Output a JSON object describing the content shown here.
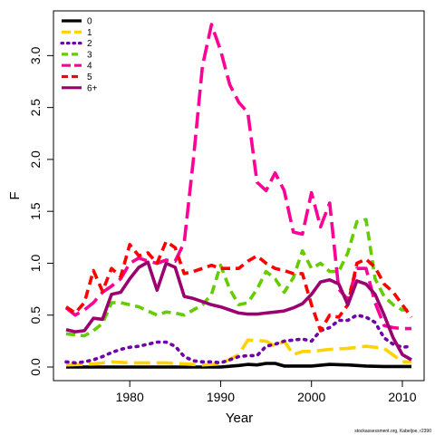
{
  "chart_data": {
    "type": "line",
    "title": "",
    "xlabel": "Year",
    "ylabel": "F",
    "xlim": [
      1973,
      2011
    ],
    "ylim": [
      0,
      3.3
    ],
    "xticks": [
      1980,
      1990,
      2000,
      2010
    ],
    "yticks": [
      "0.0",
      "0.5",
      "1.0",
      "1.5",
      "2.0",
      "2.5",
      "3.0"
    ],
    "legend_position": "top-left",
    "footnote": "stockassessment.org, Kabeljoe, r2390",
    "series": [
      {
        "name": "0",
        "color": "#000000",
        "dash": "solid",
        "width": 3.6,
        "x": [
          1973,
          1975,
          1980,
          1985,
          1990,
          1992,
          1993,
          1994,
          1995,
          1996,
          1997,
          2000,
          2002,
          2004,
          2006,
          2008,
          2011
        ],
        "y": [
          0.0,
          0.0,
          0.0,
          0.0,
          0.0,
          0.015,
          0.025,
          0.02,
          0.035,
          0.035,
          0.01,
          0.01,
          0.025,
          0.02,
          0.01,
          0.005,
          0.005
        ]
      },
      {
        "name": "1",
        "color": "#ffd200",
        "dash": "longdash",
        "width": 3.6,
        "x": [
          1973,
          1976,
          1978,
          1980,
          1982,
          1984,
          1986,
          1988,
          1990,
          1992,
          1993,
          1995,
          1996,
          1997,
          1998,
          1999,
          2000,
          2002,
          2004,
          2006,
          2008,
          2010,
          2011
        ],
        "y": [
          0.02,
          0.03,
          0.05,
          0.04,
          0.04,
          0.04,
          0.03,
          0.02,
          0.03,
          0.12,
          0.26,
          0.25,
          0.2,
          0.25,
          0.12,
          0.15,
          0.15,
          0.17,
          0.18,
          0.2,
          0.18,
          0.05,
          0.05
        ]
      },
      {
        "name": "2",
        "color": "#7000a8",
        "dash": "dotted",
        "width": 3.6,
        "x": [
          1973,
          1974,
          1975,
          1976,
          1977,
          1978,
          1979,
          1980,
          1981,
          1982,
          1983,
          1984,
          1985,
          1986,
          1987,
          1988,
          1989,
          1990,
          1991,
          1992,
          1993,
          1994,
          1995,
          1996,
          1997,
          1998,
          1999,
          2000,
          2001,
          2002,
          2003,
          2004,
          2005,
          2006,
          2007,
          2008,
          2009,
          2010,
          2011
        ],
        "y": [
          0.05,
          0.04,
          0.05,
          0.07,
          0.1,
          0.14,
          0.17,
          0.19,
          0.2,
          0.22,
          0.24,
          0.24,
          0.2,
          0.1,
          0.06,
          0.05,
          0.05,
          0.04,
          0.07,
          0.1,
          0.11,
          0.11,
          0.2,
          0.22,
          0.25,
          0.26,
          0.27,
          0.25,
          0.35,
          0.38,
          0.45,
          0.45,
          0.5,
          0.48,
          0.43,
          0.28,
          0.22,
          0.19,
          0.2
        ]
      },
      {
        "name": "3",
        "color": "#64cc00",
        "dash": "dashed",
        "width": 3.6,
        "x": [
          1973,
          1974,
          1975,
          1976,
          1977,
          1978,
          1979,
          1980,
          1981,
          1982,
          1983,
          1984,
          1985,
          1986,
          1987,
          1988,
          1989,
          1990,
          1991,
          1992,
          1993,
          1994,
          1995,
          1996,
          1997,
          1998,
          1999,
          2000,
          2001,
          2002,
          2003,
          2004,
          2005,
          2006,
          2007,
          2008,
          2009,
          2010,
          2011
        ],
        "y": [
          0.32,
          0.31,
          0.3,
          0.35,
          0.42,
          0.62,
          0.62,
          0.6,
          0.58,
          0.54,
          0.5,
          0.53,
          0.52,
          0.5,
          0.55,
          0.6,
          0.7,
          0.98,
          0.75,
          0.6,
          0.62,
          0.75,
          0.92,
          0.85,
          0.72,
          0.86,
          1.12,
          0.95,
          1.0,
          0.92,
          0.92,
          1.1,
          1.4,
          1.42,
          0.85,
          0.68,
          0.6,
          0.55,
          0.55
        ]
      },
      {
        "name": "4",
        "color": "#ff0096",
        "dash": "longdash",
        "width": 3.6,
        "x": [
          1973,
          1974,
          1975,
          1976,
          1977,
          1978,
          1979,
          1980,
          1981,
          1982,
          1983,
          1984,
          1985,
          1986,
          1987,
          1988,
          1989,
          1990,
          1991,
          1992,
          1993,
          1994,
          1995,
          1996,
          1997,
          1998,
          1999,
          2000,
          2001,
          2002,
          2003,
          2004,
          2005,
          2006,
          2007,
          2008,
          2009,
          2010,
          2011
        ],
        "y": [
          0.57,
          0.5,
          0.55,
          0.62,
          0.72,
          0.78,
          0.85,
          1.0,
          1.05,
          1.02,
          1.0,
          1.03,
          1.02,
          1.2,
          2.0,
          2.9,
          3.3,
          3.05,
          2.72,
          2.55,
          2.45,
          1.78,
          1.7,
          1.87,
          1.7,
          1.3,
          1.28,
          1.68,
          1.35,
          1.58,
          0.75,
          0.65,
          0.95,
          0.95,
          0.62,
          0.4,
          0.38,
          0.37,
          0.37
        ]
      },
      {
        "name": "5",
        "color": "#ff0000",
        "dash": "dashed",
        "width": 3.6,
        "x": [
          1973,
          1974,
          1975,
          1976,
          1977,
          1978,
          1979,
          1980,
          1981,
          1982,
          1983,
          1984,
          1985,
          1986,
          1987,
          1988,
          1989,
          1990,
          1991,
          1992,
          1993,
          1994,
          1995,
          1996,
          1997,
          1998,
          1999,
          2000,
          2001,
          2002,
          2003,
          2004,
          2005,
          2006,
          2007,
          2008,
          2009,
          2010,
          2011
        ],
        "y": [
          0.58,
          0.52,
          0.62,
          0.93,
          0.73,
          0.95,
          0.87,
          1.18,
          1.07,
          1.1,
          1.0,
          1.21,
          1.15,
          0.9,
          0.92,
          0.95,
          0.98,
          0.95,
          0.95,
          0.95,
          1.02,
          1.07,
          1.0,
          0.95,
          0.93,
          0.9,
          0.9,
          0.6,
          0.35,
          0.5,
          0.48,
          0.6,
          1.0,
          1.04,
          0.96,
          0.8,
          0.72,
          0.6,
          0.48
        ]
      },
      {
        "name": "6+",
        "color": "#9a0070",
        "dash": "solid",
        "width": 3.6,
        "x": [
          1973,
          1974,
          1975,
          1976,
          1977,
          1978,
          1979,
          1980,
          1981,
          1982,
          1983,
          1984,
          1985,
          1986,
          1987,
          1988,
          1989,
          1990,
          1991,
          1992,
          1993,
          1994,
          1995,
          1996,
          1997,
          1998,
          1999,
          2000,
          2001,
          2002,
          2003,
          2004,
          2005,
          2006,
          2007,
          2008,
          2009,
          2010,
          2011
        ],
        "y": [
          0.36,
          0.34,
          0.35,
          0.47,
          0.46,
          0.7,
          0.72,
          0.85,
          0.96,
          1.01,
          0.74,
          1.0,
          0.96,
          0.68,
          0.66,
          0.63,
          0.6,
          0.58,
          0.55,
          0.52,
          0.51,
          0.51,
          0.52,
          0.53,
          0.54,
          0.57,
          0.61,
          0.7,
          0.82,
          0.84,
          0.8,
          0.6,
          0.83,
          0.8,
          0.7,
          0.5,
          0.28,
          0.12,
          0.07
        ]
      }
    ]
  }
}
